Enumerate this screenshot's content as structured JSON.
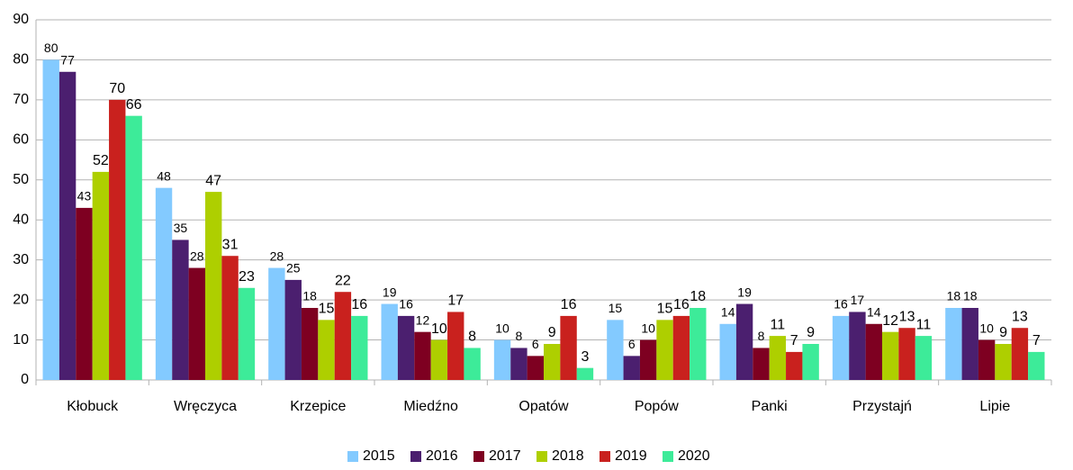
{
  "chart_data": {
    "type": "bar",
    "categories": [
      "Kłobuck",
      "Wręczyca",
      "Krzepice",
      "Miedźno",
      "Opatów",
      "Popów",
      "Panki",
      "Przystajń",
      "Lipie"
    ],
    "series": [
      {
        "name": "2015",
        "color": "#83caff",
        "values": [
          80,
          48,
          28,
          19,
          10,
          15,
          14,
          16,
          18
        ]
      },
      {
        "name": "2016",
        "color": "#4b1f6f",
        "values": [
          77,
          35,
          25,
          16,
          8,
          6,
          19,
          17,
          18
        ]
      },
      {
        "name": "2017",
        "color": "#7e0021",
        "values": [
          43,
          28,
          18,
          12,
          6,
          10,
          8,
          14,
          10
        ]
      },
      {
        "name": "2018",
        "color": "#aecf00",
        "values": [
          52,
          47,
          15,
          10,
          9,
          15,
          11,
          12,
          9
        ]
      },
      {
        "name": "2019",
        "color": "#c9211e",
        "values": [
          70,
          31,
          22,
          17,
          16,
          16,
          7,
          13,
          13
        ]
      },
      {
        "name": "2020",
        "color": "#3deb99",
        "values": [
          66,
          23,
          16,
          8,
          3,
          18,
          9,
          11,
          7
        ]
      }
    ],
    "ylim": [
      0,
      90
    ],
    "yticks": [
      0,
      10,
      20,
      30,
      40,
      50,
      60,
      70,
      80,
      90
    ],
    "grid": true,
    "legend": "bottom"
  }
}
